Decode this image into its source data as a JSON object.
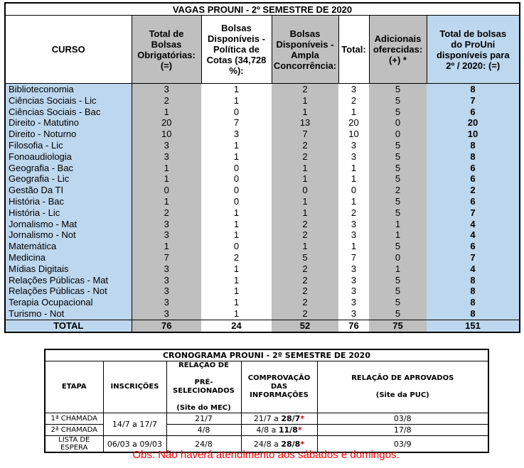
{
  "colors": {
    "light_blue": "#BDD7EE",
    "gray": "#BFBFBF",
    "obs_red": "#FF0000",
    "asterisk_red": "#C00000"
  },
  "vagas_table": {
    "title": "VAGAS PROUNI - 2º SEMESTRE DE 2020",
    "columns": [
      {
        "label": "CURSO"
      },
      {
        "label": "Total de\nBolsas\nObrigatórias:\n(=)"
      },
      {
        "label": "Bolsas\nDisponíveis -\nPolítica de\nCotas (34,728\n%):"
      },
      {
        "label": "Bolsas\nDisponíveis -\nAmpla\nConcorrência:"
      },
      {
        "label": "Total:"
      },
      {
        "label": "Adicionais\noferecidas:\n(+) *"
      },
      {
        "label": "Total de bolsas\ndo ProUni\ndisponíveis para\n2º / 2020: (=)"
      }
    ],
    "rows": [
      {
        "curso": "Biblioteconomia",
        "values": [
          3,
          1,
          2,
          3,
          5,
          8
        ]
      },
      {
        "curso": "Ciências Sociais - Lic",
        "values": [
          2,
          1,
          1,
          2,
          5,
          7
        ]
      },
      {
        "curso": "Ciências Sociais - Bac",
        "values": [
          1,
          0,
          1,
          1,
          5,
          6
        ]
      },
      {
        "curso": "Direito - Matutino",
        "values": [
          20,
          7,
          13,
          20,
          0,
          20
        ]
      },
      {
        "curso": "Direito - Noturno",
        "values": [
          10,
          3,
          7,
          10,
          0,
          10
        ]
      },
      {
        "curso": "Filosofia - Lic",
        "values": [
          3,
          1,
          2,
          3,
          5,
          8
        ]
      },
      {
        "curso": "Fonoaudiologia",
        "values": [
          3,
          1,
          2,
          3,
          5,
          8
        ]
      },
      {
        "curso": "Geografia - Bac",
        "values": [
          1,
          0,
          1,
          1,
          5,
          6
        ]
      },
      {
        "curso": "Geografia - Lic",
        "values": [
          1,
          0,
          1,
          1,
          5,
          6
        ]
      },
      {
        "curso": "Gestão Da TI",
        "values": [
          0,
          0,
          0,
          0,
          2,
          2
        ]
      },
      {
        "curso": "História - Bac",
        "values": [
          1,
          0,
          1,
          1,
          5,
          6
        ]
      },
      {
        "curso": "História - Lic",
        "values": [
          2,
          1,
          1,
          2,
          5,
          7
        ]
      },
      {
        "curso": "Jornalismo - Mat",
        "values": [
          3,
          1,
          2,
          3,
          1,
          4
        ]
      },
      {
        "curso": "Jornalismo - Not",
        "values": [
          3,
          1,
          2,
          3,
          1,
          4
        ]
      },
      {
        "curso": "Matemática",
        "values": [
          1,
          0,
          1,
          1,
          5,
          6
        ]
      },
      {
        "curso": "Medicina",
        "values": [
          7,
          2,
          5,
          7,
          0,
          7
        ]
      },
      {
        "curso": "Mídias Digitais",
        "values": [
          3,
          1,
          2,
          3,
          1,
          4
        ]
      },
      {
        "curso": "Relações Públicas - Mat",
        "values": [
          3,
          1,
          2,
          3,
          5,
          8
        ]
      },
      {
        "curso": "Relações Públicas - Not",
        "values": [
          3,
          1,
          2,
          3,
          5,
          8
        ]
      },
      {
        "curso": "Terapia Ocupacional",
        "values": [
          3,
          1,
          2,
          3,
          5,
          8
        ]
      },
      {
        "curso": "Turismo - Not",
        "values": [
          3,
          1,
          2,
          3,
          5,
          8
        ]
      }
    ],
    "total_row": {
      "label": "TOTAL",
      "values": [
        76,
        24,
        52,
        76,
        75,
        151
      ]
    }
  },
  "cronograma_table": {
    "title": "CRONOGRAMA PROUNI - 2º SEMESTRE DE 2020",
    "headers": [
      "ETAPA",
      "INSCRIÇÕES",
      "RELAÇÃO DE\n\nPRÉ-SELECIONADOS\n\n(Site do MEC)",
      "COMPROVAÇÃO DAS\nINFORMAÇÕES",
      "RELAÇÃO DE APROVADOS\n\n(Site da PUC)"
    ],
    "rows": [
      {
        "etapa": "1ª CHAMADA",
        "inscricoes": "14/7 a 17/7",
        "inscricoes_rowspan": 2,
        "pre_selecionados": "21/7",
        "comp_pre": "21/7 a ",
        "comp_bold": "28/7",
        "comp_star": "*",
        "aprovados": "03/8"
      },
      {
        "etapa": "2ª CHAMADA",
        "inscricoes": null,
        "pre_selecionados": "4/8",
        "comp_pre": "4/8 a ",
        "comp_bold": "11/8",
        "comp_star": "*",
        "aprovados": "17/8"
      },
      {
        "etapa": "LISTA DE ESPERA",
        "inscricoes": "06/03 a 09/03",
        "inscricoes_rowspan": 1,
        "pre_selecionados": "24/8",
        "comp_pre": "24/8 a ",
        "comp_bold": "28/8",
        "comp_star": "*",
        "aprovados": "03/9"
      }
    ]
  },
  "obs": "Obs: Não haverá atendimento aos sábados e domingos."
}
